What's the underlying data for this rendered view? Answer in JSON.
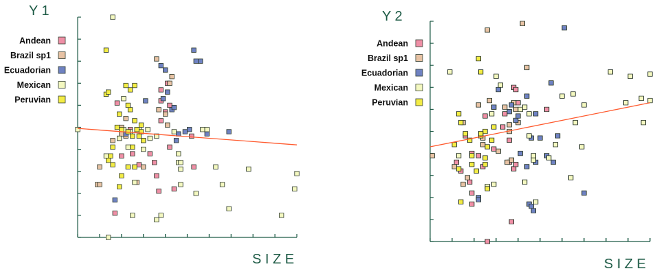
{
  "colors": {
    "Andean": "#ef8fa6",
    "Brazil sp1": "#e7c2a4",
    "Ecuadorian": "#6f82c2",
    "Mexican": "#f4f8c0",
    "Peruvian": "#f3ec45",
    "axis": "#1e5b46",
    "trend": "#ff5a2e"
  },
  "chart_data": [
    {
      "type": "scatter",
      "title": "Y 1",
      "xlabel": "S I Z E",
      "ylabel": "",
      "xlim": [
        0,
        10
      ],
      "ylim": [
        0,
        10
      ],
      "legend": [
        "Andean",
        "Brazil sp1",
        "Ecuadorian",
        "Mexican",
        "Peruvian"
      ],
      "legend_position": "top-left",
      "trendline": {
        "x": [
          0,
          10
        ],
        "y": [
          4.95,
          4.2
        ]
      },
      "series": [
        {
          "name": "Andean",
          "points": [
            [
              1.8,
              6.1
            ],
            [
              1.9,
              4.5
            ],
            [
              2.0,
              3.7
            ],
            [
              2.4,
              4.9
            ],
            [
              2.5,
              3.8
            ],
            [
              2.8,
              3.3
            ],
            [
              3.0,
              4.4
            ],
            [
              3.3,
              3.8
            ],
            [
              3.5,
              3.4
            ],
            [
              3.6,
              2.8
            ],
            [
              3.7,
              2.1
            ],
            [
              3.8,
              5.3
            ],
            [
              3.8,
              6.2
            ],
            [
              3.8,
              6.7
            ],
            [
              4.0,
              5.7
            ],
            [
              4.1,
              7.0
            ],
            [
              4.2,
              6.0
            ],
            [
              4.2,
              4.1
            ],
            [
              4.4,
              2.2
            ],
            [
              5.2,
              4.6
            ],
            [
              5.3,
              3.2
            ],
            [
              1.7,
              1.1
            ]
          ]
        },
        {
          "name": "Brazil sp1",
          "points": [
            [
              0.9,
              2.4
            ],
            [
              1.0,
              2.4
            ],
            [
              1.6,
              4.4
            ],
            [
              2.0,
              5.0
            ],
            [
              2.0,
              4.7
            ],
            [
              2.2,
              4.6
            ],
            [
              2.2,
              5.4
            ],
            [
              2.7,
              2.5
            ],
            [
              3.0,
              3.2
            ],
            [
              3.6,
              8.1
            ],
            [
              3.7,
              5.8
            ],
            [
              4.0,
              5.6
            ],
            [
              4.1,
              5.1
            ],
            [
              4.2,
              7.0
            ],
            [
              4.3,
              7.3
            ],
            [
              1.0,
              3.2
            ]
          ]
        },
        {
          "name": "Ecuadorian",
          "points": [
            [
              1.7,
              1.7
            ],
            [
              3.1,
              6.2
            ],
            [
              3.8,
              7.8
            ],
            [
              4.0,
              7.6
            ],
            [
              3.9,
              6.3
            ],
            [
              4.1,
              6.6
            ],
            [
              4.3,
              5.8
            ],
            [
              4.5,
              4.4
            ],
            [
              4.6,
              4.7
            ],
            [
              4.9,
              4.8
            ],
            [
              5.1,
              4.9
            ],
            [
              5.3,
              8.5
            ],
            [
              5.4,
              8.0
            ],
            [
              5.6,
              8.0
            ],
            [
              5.9,
              4.7
            ],
            [
              6.9,
              4.8
            ],
            [
              4.4,
              5.9
            ],
            [
              2.2,
              4.7
            ]
          ]
        },
        {
          "name": "Mexican",
          "points": [
            [
              0.0,
              4.9
            ],
            [
              1.4,
              0.0
            ],
            [
              1.6,
              10.0
            ],
            [
              1.9,
              4.5
            ],
            [
              2.0,
              4.9
            ],
            [
              2.1,
              4.9
            ],
            [
              2.3,
              4.1
            ],
            [
              2.4,
              4.8
            ],
            [
              2.5,
              1.0
            ],
            [
              2.6,
              2.5
            ],
            [
              2.8,
              4.9
            ],
            [
              3.0,
              4.0
            ],
            [
              3.2,
              4.9
            ],
            [
              3.3,
              4.5
            ],
            [
              3.6,
              4.6
            ],
            [
              3.6,
              0.8
            ],
            [
              3.8,
              1.0
            ],
            [
              4.4,
              4.8
            ],
            [
              4.6,
              3.8
            ],
            [
              4.6,
              3.4
            ],
            [
              4.7,
              3.1
            ],
            [
              4.7,
              3.4
            ],
            [
              4.7,
              2.4
            ],
            [
              5.4,
              2.0
            ],
            [
              5.7,
              4.9
            ],
            [
              5.9,
              4.9
            ],
            [
              6.3,
              3.2
            ],
            [
              6.6,
              2.4
            ],
            [
              6.9,
              1.3
            ],
            [
              7.8,
              3.1
            ],
            [
              9.3,
              1.0
            ],
            [
              9.9,
              2.2
            ],
            [
              10.0,
              2.9
            ],
            [
              2.1,
              6.3
            ],
            [
              1.3,
              3.7
            ]
          ]
        },
        {
          "name": "Peruvian",
          "points": [
            [
              1.3,
              8.5
            ],
            [
              1.3,
              6.5
            ],
            [
              1.4,
              6.6
            ],
            [
              1.6,
              3.3
            ],
            [
              1.6,
              4.1
            ],
            [
              1.8,
              5.0
            ],
            [
              1.9,
              5.6
            ],
            [
              2.0,
              4.9
            ],
            [
              2.2,
              6.9
            ],
            [
              2.3,
              4.8
            ],
            [
              2.4,
              5.8
            ],
            [
              2.4,
              6.7
            ],
            [
              2.5,
              4.6
            ],
            [
              2.5,
              4.1
            ],
            [
              2.6,
              6.9
            ],
            [
              2.6,
              5.3
            ],
            [
              2.7,
              4.9
            ],
            [
              2.8,
              4.6
            ],
            [
              2.9,
              4.8
            ],
            [
              3.0,
              4.4
            ],
            [
              2.6,
              3.2
            ],
            [
              2.3,
              3.2
            ],
            [
              2.0,
              2.8
            ],
            [
              1.9,
              2.3
            ],
            [
              1.5,
              3.7
            ],
            [
              1.4,
              3.5
            ],
            [
              2.3,
              6.0
            ],
            [
              2.9,
              5.1
            ]
          ]
        }
      ]
    },
    {
      "type": "scatter",
      "title": "Y 2",
      "xlabel": "S I Z E",
      "ylabel": "",
      "xlim": [
        0,
        10
      ],
      "ylim": [
        0,
        10
      ],
      "legend": [
        "Andean",
        "Brazil sp1",
        "Ecuadorian",
        "Mexican",
        "Peruvian"
      ],
      "legend_position": "top-left",
      "trendline": {
        "x": [
          0,
          10
        ],
        "y": [
          4.3,
          6.3
        ]
      },
      "series": [
        {
          "name": "Andean",
          "points": [
            [
              1.9,
              1.7
            ],
            [
              1.8,
              2.7
            ],
            [
              1.9,
              2.2
            ],
            [
              1.2,
              3.6
            ],
            [
              1.4,
              3.2
            ],
            [
              1.6,
              4.8
            ],
            [
              1.9,
              4.0
            ],
            [
              2.2,
              3.9
            ],
            [
              2.4,
              3.4
            ],
            [
              2.5,
              5.7
            ],
            [
              2.9,
              4.2
            ],
            [
              3.3,
              5.2
            ],
            [
              3.4,
              5.8
            ],
            [
              3.6,
              4.6
            ],
            [
              3.6,
              3.6
            ],
            [
              3.8,
              3.3
            ],
            [
              3.8,
              7.0
            ],
            [
              3.9,
              6.9
            ],
            [
              4.0,
              6.3
            ],
            [
              3.7,
              0.9
            ],
            [
              2.6,
              0.0
            ],
            [
              5.3,
              6.0
            ],
            [
              3.9,
              3.5
            ]
          ]
        },
        {
          "name": "Brazil sp1",
          "points": [
            [
              2.6,
              9.6
            ],
            [
              4.2,
              9.9
            ],
            [
              4.4,
              7.9
            ],
            [
              2.4,
              4.4
            ],
            [
              2.7,
              6.4
            ],
            [
              2.2,
              6.2
            ],
            [
              1.1,
              3.4
            ],
            [
              1.5,
              2.6
            ],
            [
              1.7,
              2.9
            ],
            [
              2.4,
              4.7
            ],
            [
              2.9,
              6.1
            ],
            [
              3.4,
              6.1
            ],
            [
              3.8,
              6.3
            ],
            [
              3.6,
              5.0
            ],
            [
              3.6,
              5.3
            ],
            [
              3.1,
              4.1
            ],
            [
              3.7,
              3.7
            ],
            [
              0.1,
              3.9
            ],
            [
              3.5,
              3.6
            ],
            [
              4.0,
              5.4
            ],
            [
              3.9,
              6.0
            ],
            [
              1.5,
              5.4
            ]
          ]
        },
        {
          "name": "Ecuadorian",
          "points": [
            [
              6.1,
              9.7
            ],
            [
              2.2,
              2.0
            ],
            [
              2.2,
              1.9
            ],
            [
              2.9,
              6.1
            ],
            [
              3.1,
              6.9
            ],
            [
              3.6,
              5.9
            ],
            [
              3.7,
              6.2
            ],
            [
              3.9,
              5.5
            ],
            [
              4.0,
              5.7
            ],
            [
              4.1,
              4.0
            ],
            [
              4.4,
              3.4
            ],
            [
              4.5,
              1.7
            ],
            [
              4.5,
              1.7
            ],
            [
              4.6,
              1.6
            ],
            [
              4.6,
              4.7
            ],
            [
              4.8,
              5.8
            ],
            [
              4.8,
              3.6
            ],
            [
              5.0,
              4.7
            ],
            [
              5.3,
              3.9
            ],
            [
              5.5,
              7.2
            ],
            [
              5.6,
              3.6
            ],
            [
              5.8,
              4.8
            ],
            [
              7.0,
              2.2
            ],
            [
              4.4,
              6.6
            ],
            [
              4.7,
              1.4
            ]
          ]
        },
        {
          "name": "Mexican",
          "points": [
            [
              9.6,
              6.5
            ],
            [
              6.0,
              6.6
            ],
            [
              6.5,
              6.7
            ],
            [
              8.2,
              7.7
            ],
            [
              9.1,
              7.5
            ],
            [
              9.7,
              5.4
            ],
            [
              8.9,
              6.3
            ],
            [
              10.0,
              7.6
            ],
            [
              10.0,
              6.4
            ],
            [
              4.3,
              2.7
            ],
            [
              4.1,
              6.0
            ],
            [
              4.5,
              5.8
            ],
            [
              5.7,
              4.4
            ],
            [
              6.6,
              5.4
            ],
            [
              7.0,
              6.2
            ],
            [
              4.7,
              3.7
            ],
            [
              5.4,
              3.8
            ],
            [
              6.4,
              2.9
            ],
            [
              6.9,
              4.3
            ],
            [
              2.6,
              2.5
            ],
            [
              2.9,
              2.6
            ],
            [
              4.8,
              1.8
            ],
            [
              2.8,
              5.8
            ],
            [
              1.3,
              3.9
            ],
            [
              0.9,
              7.7
            ],
            [
              3.0,
              7.5
            ],
            [
              3.2,
              7.1
            ],
            [
              4.3,
              6.1
            ],
            [
              4.5,
              4.8
            ],
            [
              4.7,
              3.9
            ]
          ]
        },
        {
          "name": "Peruvian",
          "points": [
            [
              2.2,
              8.3
            ],
            [
              2.3,
              7.7
            ],
            [
              1.4,
              5.4
            ],
            [
              1.3,
              5.8
            ],
            [
              1.6,
              4.9
            ],
            [
              1.8,
              4.6
            ],
            [
              1.9,
              3.9
            ],
            [
              2.1,
              3.2
            ],
            [
              1.9,
              3.5
            ],
            [
              2.3,
              4.8
            ],
            [
              2.5,
              5.0
            ],
            [
              2.5,
              3.8
            ],
            [
              2.6,
              4.3
            ],
            [
              1.4,
              1.8
            ],
            [
              1.3,
              3.3
            ],
            [
              2.5,
              3.5
            ],
            [
              2.6,
              2.4
            ],
            [
              2.8,
              4.6
            ],
            [
              2.9,
              5.2
            ],
            [
              1.1,
              4.4
            ],
            [
              2.3,
              4.9
            ]
          ]
        }
      ]
    }
  ]
}
